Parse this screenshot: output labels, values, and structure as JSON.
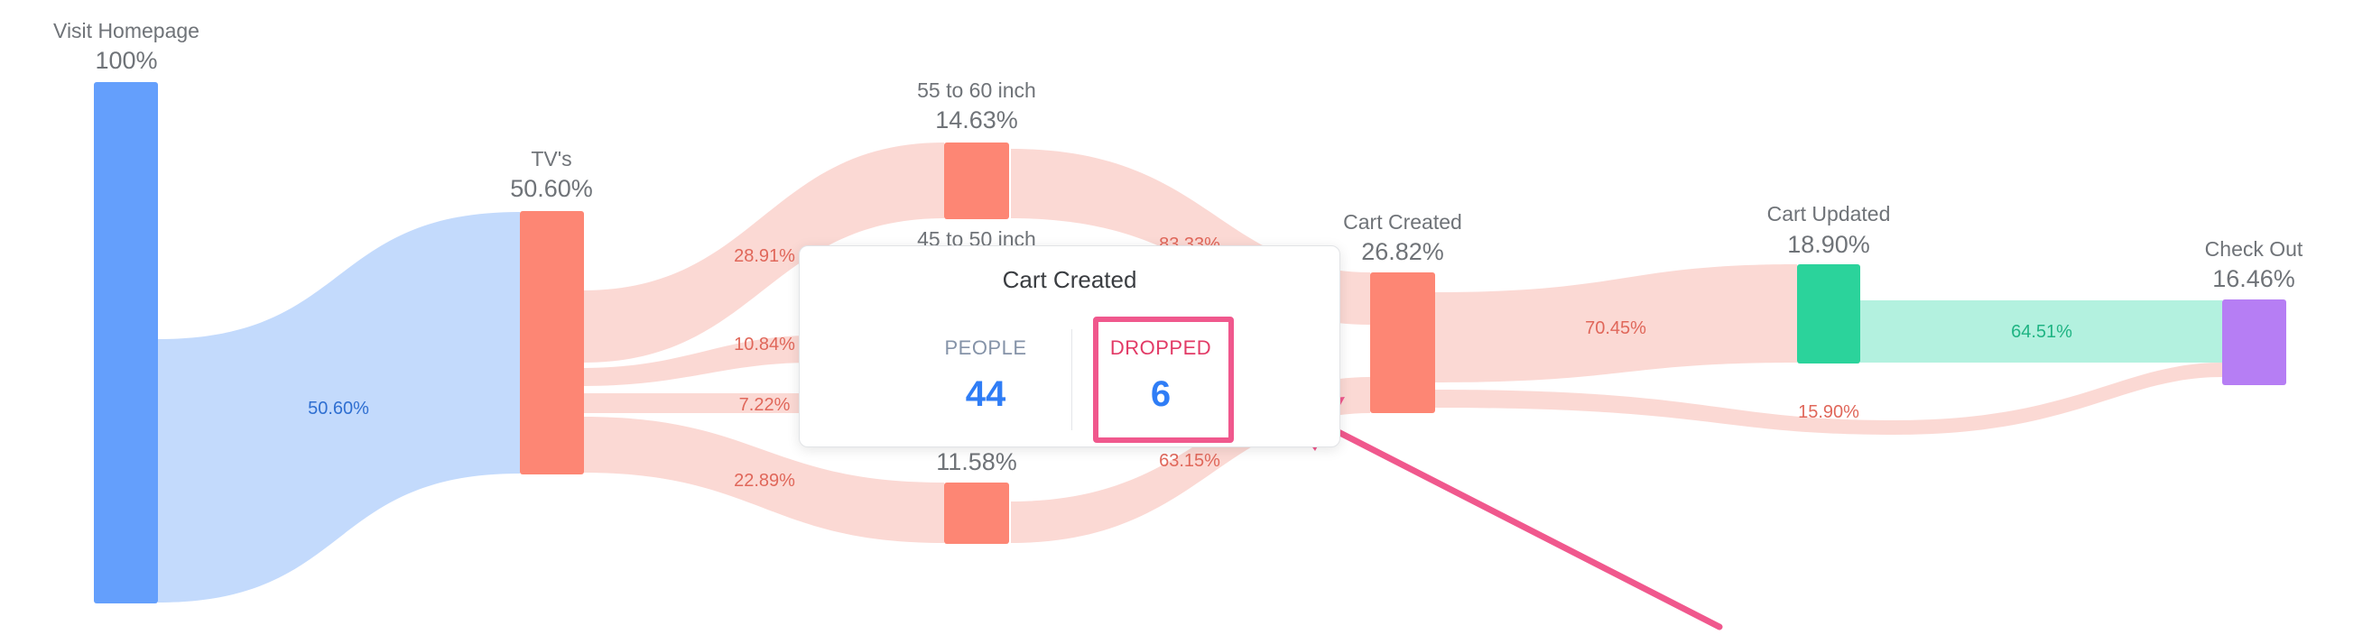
{
  "nodes": {
    "visit_homepage": {
      "label": "Visit Homepage",
      "pct": "100%"
    },
    "tvs": {
      "label": "TV's",
      "pct": "50.60%"
    },
    "inch_55_60": {
      "label": "55 to 60 inch",
      "pct": "14.63%"
    },
    "inch_45_50": {
      "label": "45 to 50 inch",
      "pct": ""
    },
    "lower_node": {
      "label": "",
      "pct": "11.58%"
    },
    "cart_created": {
      "label": "Cart Created",
      "pct": "26.82%"
    },
    "cart_updated": {
      "label": "Cart Updated",
      "pct": "18.90%"
    },
    "check_out": {
      "label": "Check Out",
      "pct": "16.46%"
    }
  },
  "links": {
    "home_tvs": "50.60%",
    "tvs_55_60": "28.91%",
    "tvs_mid_a": "10.84%",
    "tvs_mid_b": "7.22%",
    "tvs_lower": "22.89%",
    "n55_60_cart": "83.33%",
    "lower_cart": "63.15%",
    "cart_updated": "70.45%",
    "cart_checkout": "15.90%",
    "updated_checkout": "64.51%"
  },
  "tooltip": {
    "title": "Cart Created",
    "people_label": "PEOPLE",
    "people_value": "44",
    "dropped_label": "DROPPED",
    "dropped_value": "6"
  },
  "colors": {
    "blue_node": "#649ffc",
    "blue_flow": "#c3dafc",
    "salmon_node": "#fd8674",
    "salmon_flow": "#fbd9d4",
    "green_node": "#2bd39b",
    "green_flow": "#b3f1df",
    "purple_node": "#b67ef4",
    "annotation_pink": "#f0588d",
    "value_blue": "#2f7df6"
  }
}
